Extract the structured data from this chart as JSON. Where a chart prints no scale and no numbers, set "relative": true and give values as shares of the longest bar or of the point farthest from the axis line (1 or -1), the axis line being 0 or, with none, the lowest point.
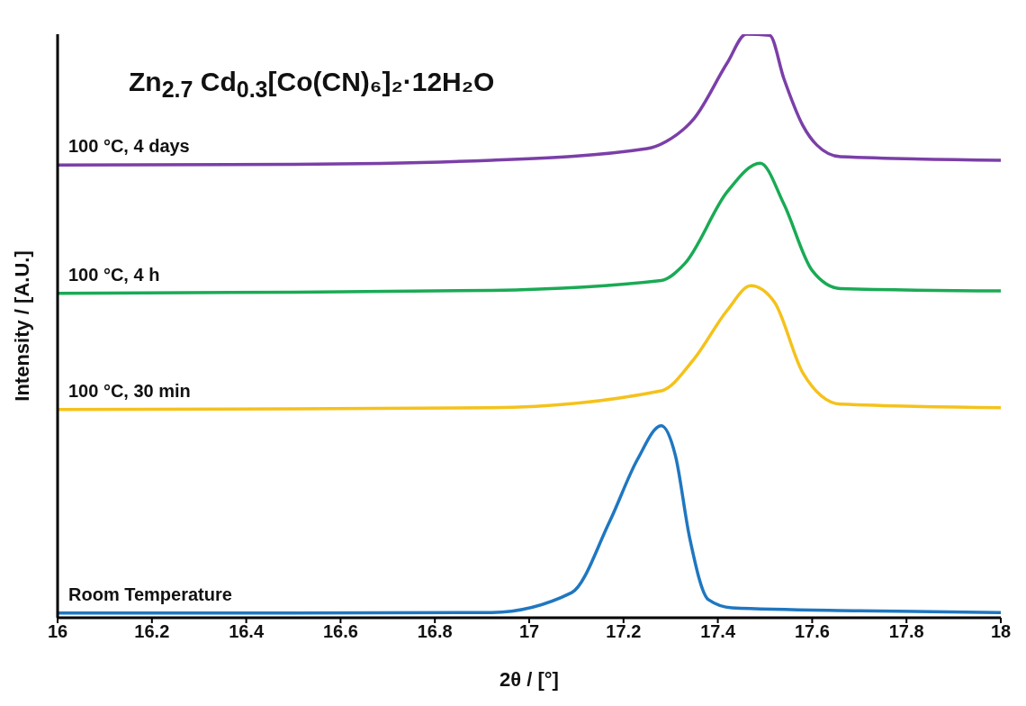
{
  "chart_data": {
    "type": "line",
    "title": "Zn$_{2.7}$ Cd$_{0.3}$[Co(CN)₆]₂·12H₂O",
    "xlabel": "2θ / [°]",
    "ylabel": "Intensity / [A.U.]",
    "relative": true,
    "xlim": [
      16,
      18
    ],
    "xticks": [
      16,
      {
        "value": 16.2,
        "label": "16.2"
      },
      {
        "value": 16.4,
        "label": "16.4"
      },
      {
        "value": 16.6,
        "label": "16.6"
      },
      {
        "value": 16.8,
        "label": "16.8"
      },
      17,
      {
        "value": 17.2,
        "label": "17.2"
      },
      {
        "value": 17.4,
        "label": "17.4"
      },
      {
        "value": 17.6,
        "label": "17.6"
      },
      {
        "value": 17.8,
        "label": "17.8"
      },
      18
    ],
    "marker": "none",
    "line_style": "solid",
    "series": [
      {
        "name": "Room Temperature",
        "color": "#1f77c0",
        "x": [
          16,
          16.5,
          16.92,
          17.09,
          17.17,
          17.23,
          17.28,
          17.31,
          17.34,
          17.38,
          17.43,
          17.7,
          18
        ],
        "values": [
          0.008,
          0.008,
          0.009,
          0.043,
          0.164,
          0.272,
          0.329,
          0.278,
          0.138,
          0.031,
          0.017,
          0.012,
          0.009
        ]
      },
      {
        "name": "100 °C, 30 min",
        "color": "#f5c21b",
        "x": [
          16,
          16.5,
          16.92,
          17.28,
          17.35,
          17.42,
          17.47,
          17.52,
          17.58,
          17.66,
          18
        ],
        "values": [
          0.357,
          0.358,
          0.36,
          0.389,
          0.444,
          0.527,
          0.569,
          0.541,
          0.42,
          0.366,
          0.36
        ]
      },
      {
        "name": "100 °C, 4 h",
        "color": "#1aaa55",
        "x": [
          16,
          16.5,
          16.92,
          17.28,
          17.33,
          17.42,
          17.49,
          17.54,
          17.6,
          17.66,
          18
        ],
        "values": [
          0.556,
          0.558,
          0.561,
          0.578,
          0.607,
          0.73,
          0.779,
          0.709,
          0.595,
          0.564,
          0.56
        ]
      },
      {
        "name": "100 °C, 4 days",
        "color": "#7b3fa8",
        "x": [
          16,
          16.5,
          16.92,
          17.25,
          17.29,
          17.35,
          17.42,
          17.46,
          17.51,
          17.54,
          17.58,
          17.61,
          17.66,
          18
        ],
        "values": [
          0.776,
          0.777,
          0.784,
          0.804,
          0.816,
          0.856,
          0.951,
          1,
          0.998,
          0.924,
          0.844,
          0.81,
          0.79,
          0.784
        ]
      }
    ]
  }
}
